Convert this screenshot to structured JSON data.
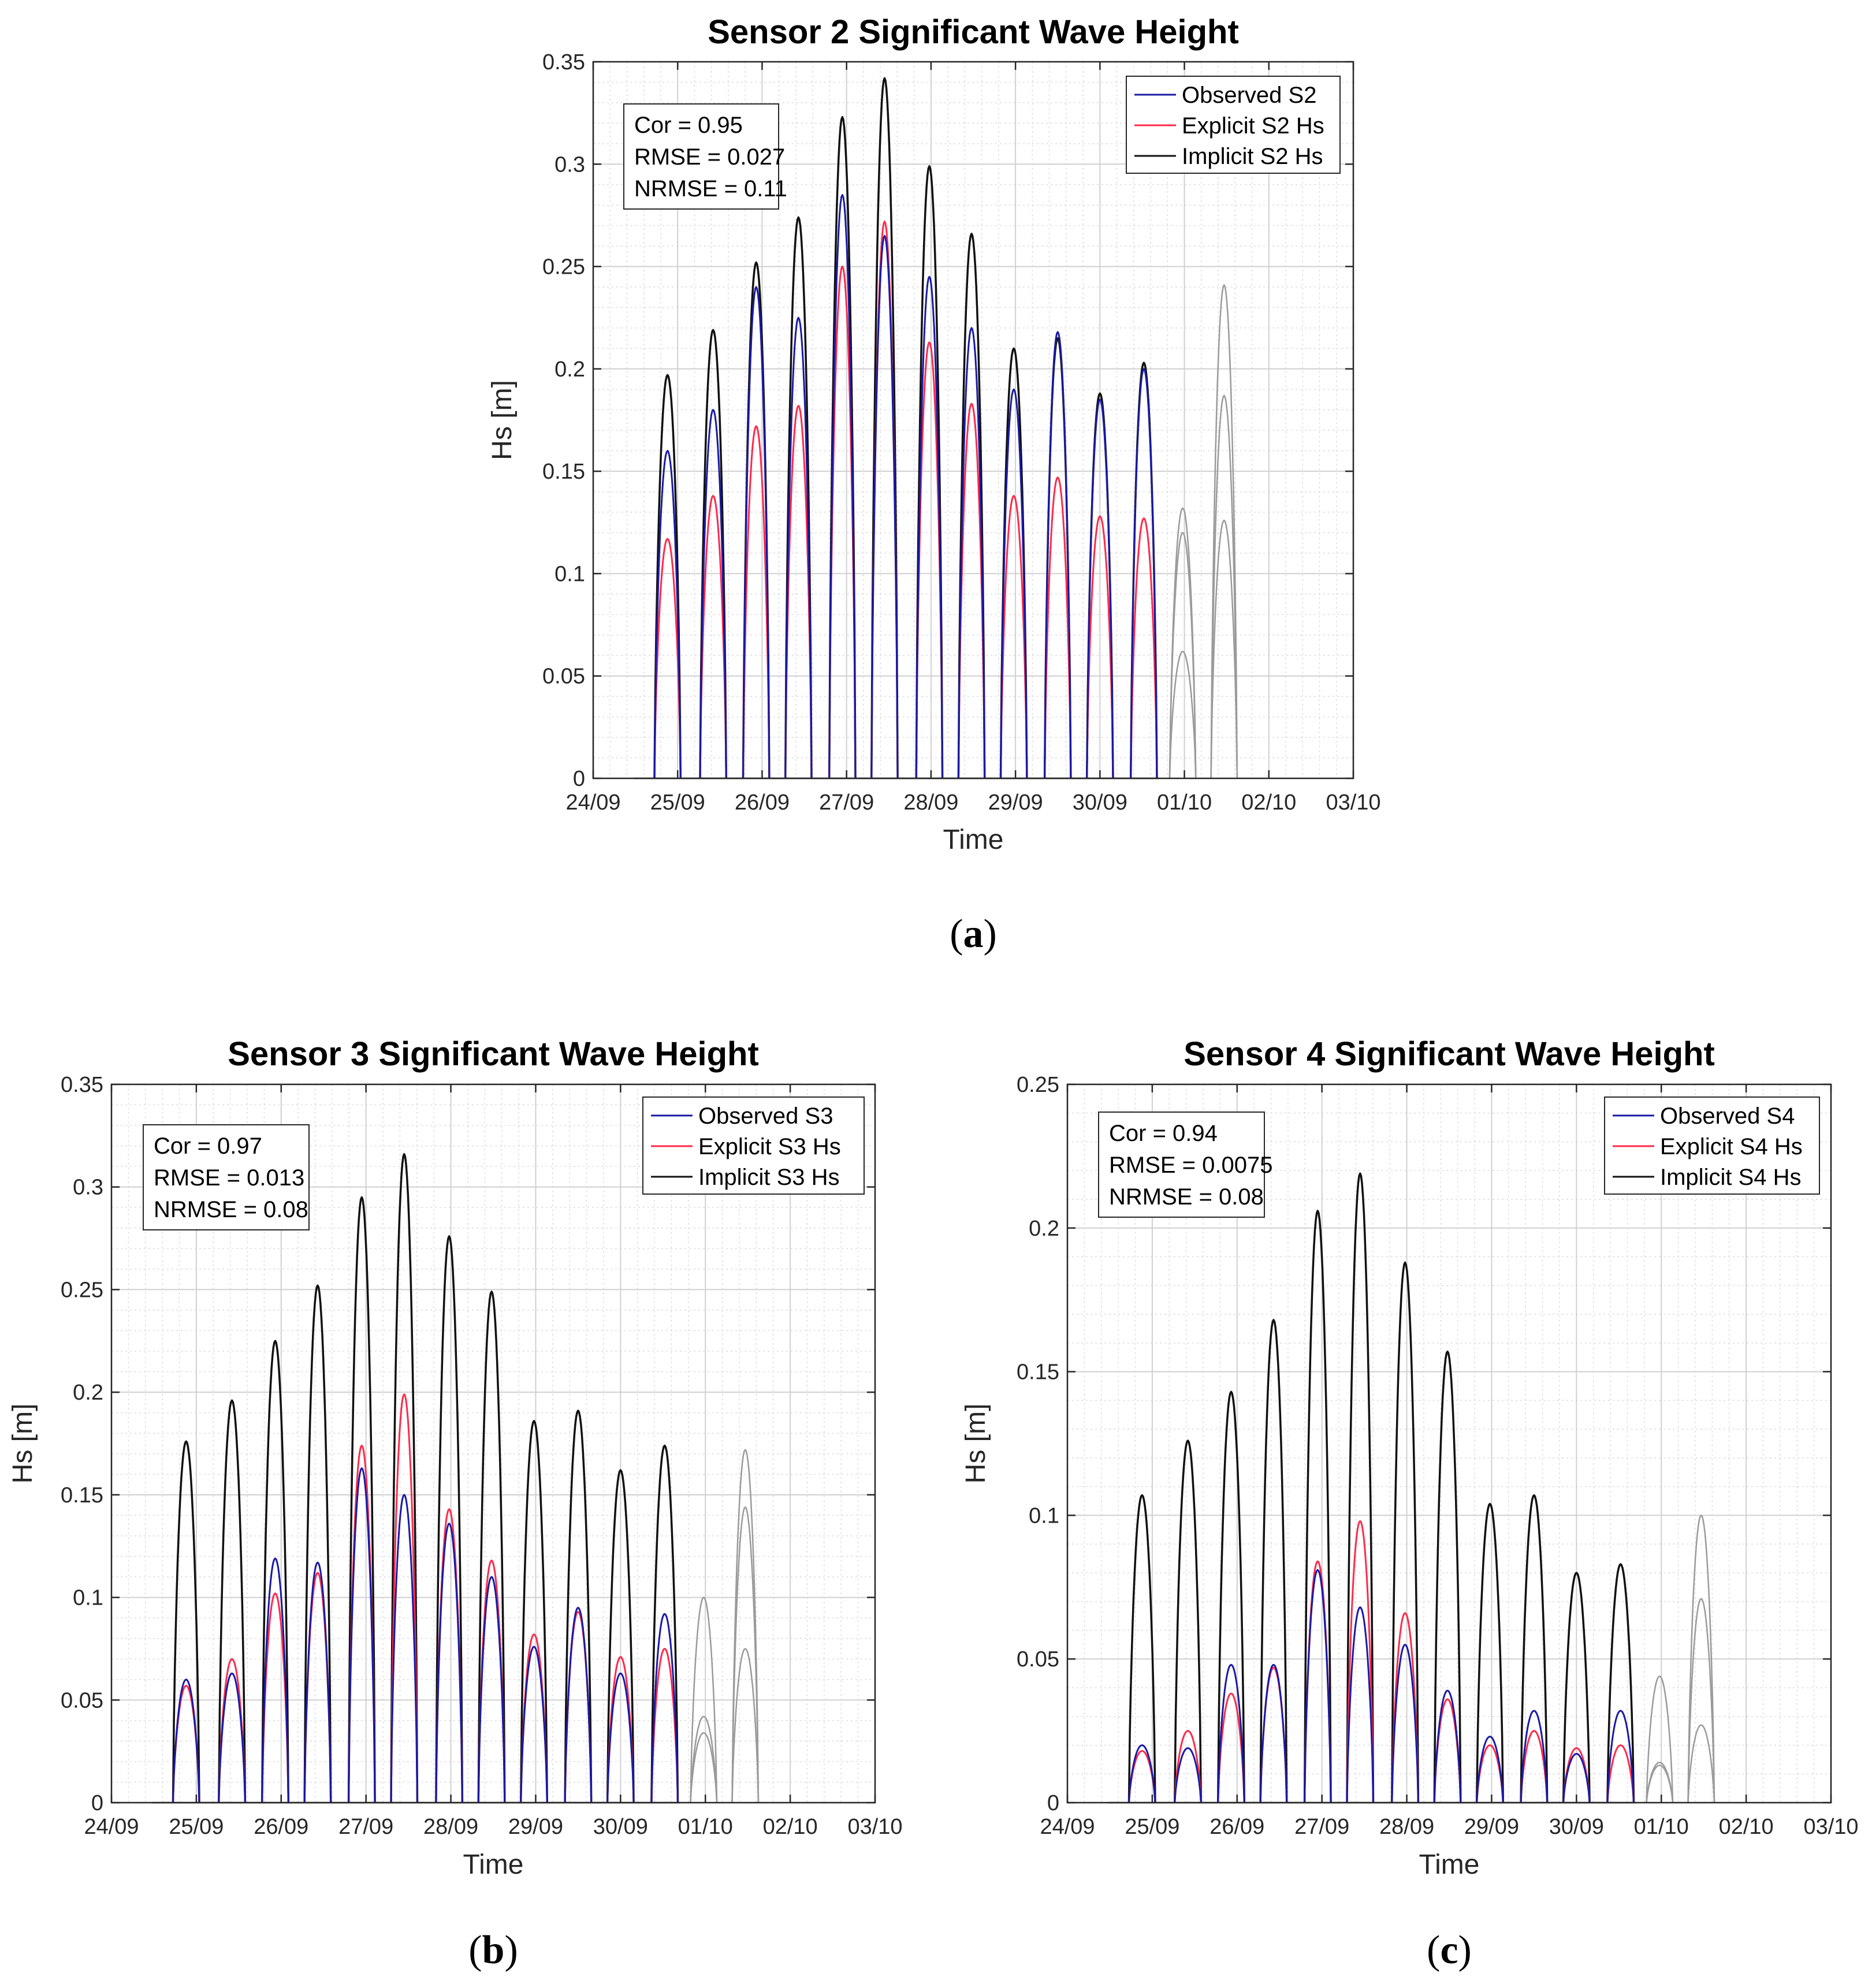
{
  "chart_data": [
    {
      "type": "line",
      "panel": "a",
      "caption_letter": "a",
      "title": "Sensor 2 Significant Wave Height",
      "xlabel": "Time",
      "ylabel": "Hs [m]",
      "x_ticks": [
        "24/09",
        "25/09",
        "26/09",
        "27/09",
        "28/09",
        "29/09",
        "30/09",
        "01/10",
        "02/10",
        "03/10"
      ],
      "y_ticks": [
        "0",
        "0.05",
        "0.1",
        "0.15",
        "0.2",
        "0.25",
        "0.3",
        "0.35"
      ],
      "ylim": [
        0,
        0.35
      ],
      "xlim_days": [
        0,
        9
      ],
      "grid": true,
      "legend_placement": "top-right",
      "stats": [
        "Cor = 0.95",
        "RMSE = 0.027",
        "NRMSE = 0.11"
      ],
      "colors": {
        "observed": "#1a1aa6",
        "explicit": "#ff2a4a",
        "implicit": "#111111",
        "future": "#9a9a9a"
      },
      "peak_times_days": [
        0.88,
        1.42,
        1.93,
        2.43,
        2.95,
        3.45,
        3.98,
        4.48,
        4.98,
        5.5,
        6.0,
        6.52
      ],
      "series": [
        {
          "name": "Observed S2",
          "key": "observed",
          "values": [
            0.16,
            0.18,
            0.24,
            0.225,
            0.285,
            0.265,
            0.245,
            0.22,
            0.19,
            0.218,
            0.185,
            0.2
          ]
        },
        {
          "name": "Explicit S2 Hs",
          "key": "explicit",
          "values": [
            0.117,
            0.138,
            0.172,
            0.182,
            0.25,
            0.272,
            0.213,
            0.183,
            0.138,
            0.147,
            0.128,
            0.127
          ]
        },
        {
          "name": "Implicit S2 Hs",
          "key": "implicit",
          "values": [
            0.197,
            0.219,
            0.252,
            0.274,
            0.323,
            0.342,
            0.299,
            0.266,
            0.21,
            0.215,
            0.188,
            0.203
          ]
        }
      ],
      "future_peaks_days": [
        6.98,
        7.47
      ],
      "future_series": [
        {
          "key": "explicit",
          "values": [
            0.062,
            0.126
          ]
        },
        {
          "key": "implicit",
          "values": [
            0.132,
            0.241
          ]
        },
        {
          "key": "observed",
          "values": [
            0.12,
            0.187
          ]
        }
      ]
    },
    {
      "type": "line",
      "panel": "b",
      "caption_letter": "b",
      "title": "Sensor 3 Significant Wave Height",
      "xlabel": "Time",
      "ylabel": "Hs [m]",
      "x_ticks": [
        "24/09",
        "25/09",
        "26/09",
        "27/09",
        "28/09",
        "29/09",
        "30/09",
        "01/10",
        "02/10",
        "03/10"
      ],
      "y_ticks": [
        "0",
        "0.05",
        "0.1",
        "0.15",
        "0.2",
        "0.25",
        "0.3",
        "0.35"
      ],
      "ylim": [
        0,
        0.35
      ],
      "xlim_days": [
        0,
        9
      ],
      "grid": true,
      "legend_placement": "top-right",
      "stats": [
        "Cor = 0.97",
        "RMSE = 0.013",
        "NRMSE = 0.08"
      ],
      "colors": {
        "observed": "#1a1aa6",
        "explicit": "#ff2a4a",
        "implicit": "#111111",
        "future": "#9a9a9a"
      },
      "peak_times_days": [
        0.88,
        1.42,
        1.93,
        2.43,
        2.95,
        3.45,
        3.98,
        4.48,
        4.98,
        5.5,
        6.0,
        6.52
      ],
      "series": [
        {
          "name": "Observed S3",
          "key": "observed",
          "values": [
            0.06,
            0.063,
            0.119,
            0.117,
            0.163,
            0.15,
            0.136,
            0.11,
            0.076,
            0.095,
            0.063,
            0.092
          ]
        },
        {
          "name": "Explicit S3 Hs",
          "key": "explicit",
          "values": [
            0.057,
            0.07,
            0.102,
            0.112,
            0.174,
            0.199,
            0.143,
            0.118,
            0.082,
            0.093,
            0.071,
            0.075
          ]
        },
        {
          "name": "Implicit S3 Hs",
          "key": "implicit",
          "values": [
            0.176,
            0.196,
            0.225,
            0.252,
            0.295,
            0.316,
            0.276,
            0.249,
            0.186,
            0.191,
            0.162,
            0.174
          ]
        }
      ],
      "future_peaks_days": [
        6.98,
        7.47
      ],
      "future_series": [
        {
          "key": "explicit",
          "values": [
            0.034,
            0.075
          ]
        },
        {
          "key": "implicit",
          "values": [
            0.1,
            0.172
          ]
        },
        {
          "key": "observed",
          "values": [
            0.042,
            0.144
          ]
        }
      ]
    },
    {
      "type": "line",
      "panel": "c",
      "caption_letter": "c",
      "title": "Sensor 4 Significant Wave Height",
      "xlabel": "Time",
      "ylabel": "Hs [m]",
      "x_ticks": [
        "24/09",
        "25/09",
        "26/09",
        "27/09",
        "28/09",
        "29/09",
        "30/09",
        "01/10",
        "02/10",
        "03/10"
      ],
      "y_ticks": [
        "0",
        "0.05",
        "0.1",
        "0.15",
        "0.2",
        "0.25"
      ],
      "ylim": [
        0,
        0.25
      ],
      "xlim_days": [
        0,
        9
      ],
      "grid": true,
      "legend_placement": "top-right",
      "stats": [
        "Cor = 0.94",
        "RMSE = 0.0075",
        "NRMSE = 0.08"
      ],
      "colors": {
        "observed": "#1a1aa6",
        "explicit": "#ff2a4a",
        "implicit": "#111111",
        "future": "#9a9a9a"
      },
      "peak_times_days": [
        0.88,
        1.42,
        1.93,
        2.43,
        2.95,
        3.45,
        3.98,
        4.48,
        4.98,
        5.5,
        6.0,
        6.52
      ],
      "series": [
        {
          "name": "Observed S4",
          "key": "observed",
          "values": [
            0.02,
            0.019,
            0.048,
            0.048,
            0.081,
            0.068,
            0.055,
            0.039,
            0.023,
            0.032,
            0.017,
            0.032
          ]
        },
        {
          "name": "Explicit S4 Hs",
          "key": "explicit",
          "values": [
            0.018,
            0.025,
            0.038,
            0.047,
            0.084,
            0.098,
            0.066,
            0.036,
            0.02,
            0.025,
            0.019,
            0.02
          ]
        },
        {
          "name": "Implicit S4 Hs",
          "key": "implicit",
          "values": [
            0.107,
            0.126,
            0.143,
            0.168,
            0.206,
            0.219,
            0.188,
            0.157,
            0.104,
            0.107,
            0.08,
            0.083
          ]
        }
      ],
      "future_peaks_days": [
        6.98,
        7.47
      ],
      "future_series": [
        {
          "key": "explicit",
          "values": [
            0.014,
            0.027
          ]
        },
        {
          "key": "implicit",
          "values": [
            0.044,
            0.1
          ]
        },
        {
          "key": "observed",
          "values": [
            0.013,
            0.071
          ]
        }
      ]
    }
  ]
}
